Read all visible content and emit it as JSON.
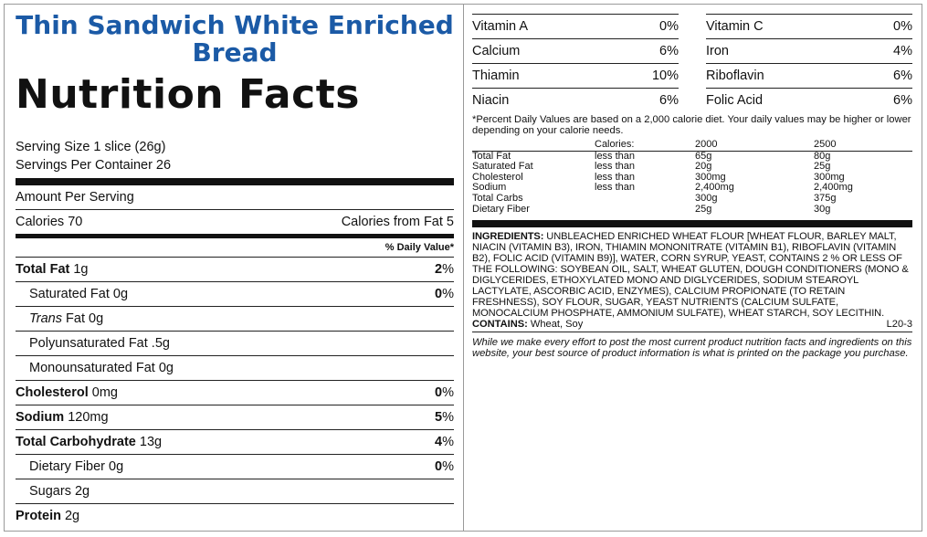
{
  "product": {
    "title": "Thin Sandwich White Enriched Bread"
  },
  "nutrition": {
    "heading": "Nutrition Facts",
    "serving_size": "Serving Size 1 slice (26g)",
    "servings_per_container": "Servings Per Container 26",
    "amount_per_serving": "Amount Per Serving",
    "calories_label": "Calories 70",
    "calories_from_fat": "Calories from Fat 5",
    "dv_header": "% Daily Value*",
    "rows": [
      {
        "name": "Total Fat",
        "amount": " 1g",
        "dv": "2",
        "bold": true,
        "indent": false
      },
      {
        "name": "Saturated Fat",
        "amount": " 0g",
        "dv": "0",
        "bold": false,
        "indent": true
      },
      {
        "name": "Trans",
        "amount": " Fat 0g",
        "dv": "",
        "bold": false,
        "indent": true,
        "italic": true
      },
      {
        "name": "Polyunsaturated Fat",
        "amount": " .5g",
        "dv": "",
        "bold": false,
        "indent": true
      },
      {
        "name": "Monounsaturated Fat",
        "amount": " 0g",
        "dv": "",
        "bold": false,
        "indent": true
      },
      {
        "name": "Cholesterol",
        "amount": " 0mg",
        "dv": "0",
        "bold": true,
        "indent": false
      },
      {
        "name": "Sodium",
        "amount": " 120mg",
        "dv": "5",
        "bold": true,
        "indent": false
      },
      {
        "name": "Total Carbohydrate",
        "amount": " 13g",
        "dv": "4",
        "bold": true,
        "indent": false
      },
      {
        "name": "Dietary Fiber",
        "amount": " 0g",
        "dv": "0",
        "bold": false,
        "indent": true
      },
      {
        "name": "Sugars",
        "amount": " 2g",
        "dv": "",
        "bold": false,
        "indent": true
      },
      {
        "name": "Protein",
        "amount": " 2g",
        "dv": "",
        "bold": true,
        "indent": false
      }
    ],
    "percent_sign": "%"
  },
  "vitamins": {
    "left": [
      {
        "name": "Vitamin A",
        "value": "0%"
      },
      {
        "name": "Calcium",
        "value": "6%"
      },
      {
        "name": "Thiamin",
        "value": "10%"
      },
      {
        "name": "Niacin",
        "value": "6%"
      }
    ],
    "right": [
      {
        "name": "Vitamin C",
        "value": "0%"
      },
      {
        "name": "Iron",
        "value": "4%"
      },
      {
        "name": "Riboflavin",
        "value": "6%"
      },
      {
        "name": "Folic Acid",
        "value": "6%"
      }
    ]
  },
  "footnote": "*Percent Daily Values are based on a 2,000 calorie diet. Your daily values may be higher or lower depending on your calorie needs.",
  "dv_table": {
    "header": [
      "",
      "Calories:",
      "2000",
      "2500"
    ],
    "rows": [
      [
        "Total Fat",
        "less than",
        "65g",
        "80g"
      ],
      [
        "Saturated Fat",
        "less than",
        "20g",
        "25g"
      ],
      [
        "Cholesterol",
        "less than",
        "300mg",
        "300mg"
      ],
      [
        "Sodium",
        "less than",
        "2,400mg",
        "2,400mg"
      ],
      [
        "Total Carbs",
        "",
        "300g",
        "375g"
      ],
      [
        "Dietary Fiber",
        "",
        "25g",
        "30g"
      ]
    ]
  },
  "ingredients": {
    "label": "INGREDIENTS:",
    "text": " UNBLEACHED ENRICHED WHEAT FLOUR [WHEAT FLOUR, BARLEY MALT, NIACIN (VITAMIN B3), IRON, THIAMIN MONONITRATE (VITAMIN B1), RIBOFLAVIN (VITAMIN B2), FOLIC ACID (VITAMIN B9)], WATER, CORN SYRUP, YEAST, CONTAINS 2 % OR LESS OF THE FOLLOWING: SOYBEAN OIL, SALT, WHEAT GLUTEN, DOUGH CONDITIONERS (MONO & DIGLYCERIDES, ETHOXYLATED MONO AND DIGLYCERIDES, SODIUM STEAROYL LACTYLATE, ASCORBIC ACID, ENZYMES), CALCIUM PROPIONATE (TO RETAIN FRESHNESS), SOY FLOUR, SUGAR, YEAST NUTRIENTS (CALCIUM SULFATE, MONOCALCIUM PHOSPHATE, AMMONIUM SULFATE), WHEAT STARCH, SOY LECITHIN.",
    "contains_label": "CONTAINS:",
    "contains_text": " Wheat, Soy",
    "code": "L20-3"
  },
  "disclaimer": "While we make every effort to post the most current product nutrition facts and ingredients on this website, your best source of product information is what is printed on the package you purchase."
}
